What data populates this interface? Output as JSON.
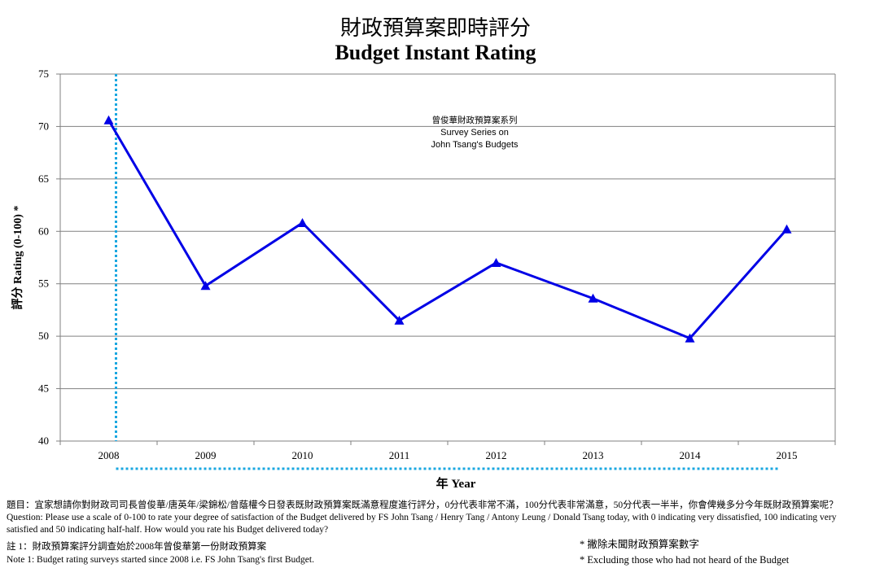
{
  "chart_data": {
    "type": "line",
    "title": "財政預算案即時評分",
    "subtitle": "Budget Instant Rating",
    "xlabel": "年 Year",
    "ylabel": "評分 Rating (0-100) *",
    "categories": [
      "2008",
      "2009",
      "2010",
      "2011",
      "2012",
      "2013",
      "2014",
      "2015"
    ],
    "series": [
      {
        "values": [
          70.6,
          54.8,
          60.8,
          51.5,
          57.0,
          53.6,
          49.8,
          60.2
        ],
        "color": "#0000e6",
        "marker": "triangle"
      }
    ],
    "ylim": [
      40,
      75
    ],
    "yticks": [
      40,
      45,
      50,
      55,
      60,
      65,
      70,
      75
    ],
    "grid": true,
    "annotation": [
      "曾俊華財政預算案系列",
      "Survey Series on",
      "John Tsang's Budgets"
    ],
    "marker_line_color": "#1aa7e0"
  },
  "notes": {
    "question_zh": "題目：宜家想請你對財政司司長曾俊華/唐英年/梁錦松/曾蔭權今日發表既財政預算案既滿意程度進行評分，0分代表非常不滿，100分代表非常滿意，50分代表一半半，你會俾幾多分今年既財政預算案呢？",
    "question_en_1": "Question: Please use a scale of 0-100 to rate your degree of satisfaction of the Budget delivered by FS John Tsang / Henry Tang / Antony Leung / Donald Tsang today, with 0 indicating very dissatisfied, 100 indicating very",
    "question_en_2": "satisfied and 50 indicating half-half. How would you rate his Budget delivered today?",
    "note1_zh": "註 1：財政預算案評分調查始於2008年曾俊華第一份財政預算案",
    "note1_en": "Note 1: Budget rating surveys started since 2008 i.e. FS John Tsang's first Budget.",
    "excl_zh": "* 撇除未聞財政預算案數字",
    "excl_en": "* Excluding  those who had not heard of the Budget"
  }
}
